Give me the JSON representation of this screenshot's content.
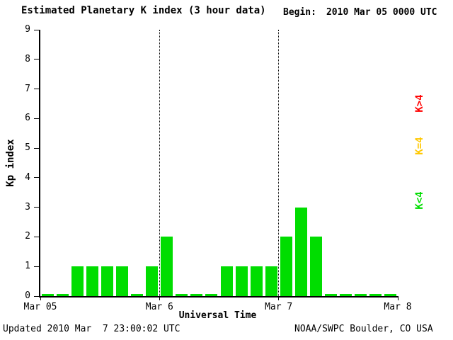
{
  "title": "Estimated Planetary K index (3 hour data)",
  "begin": {
    "label": "Begin:",
    "value": "2010 Mar 05 0000 UTC"
  },
  "y_axis": {
    "label": "Kp index"
  },
  "x_axis": {
    "label": "Universal Time"
  },
  "legend": [
    {
      "label": "K>4",
      "color": "#ff0000"
    },
    {
      "label": "K=4",
      "color": "#ffc800"
    },
    {
      "label": "K<4",
      "color": "#00dd00"
    }
  ],
  "footer": {
    "updated": "Updated 2010 Mar  7 23:00:02 UTC",
    "source": "NOAA/SWPC Boulder, CO USA"
  },
  "chart_data": {
    "type": "bar",
    "title": "Estimated Planetary K index (3 hour data)",
    "xlabel": "Universal Time",
    "ylabel": "Kp index",
    "ylim": [
      0,
      9
    ],
    "y_ticks": [
      0,
      1,
      2,
      3,
      4,
      5,
      6,
      7,
      8,
      9
    ],
    "x_tick_labels": [
      "Mar 05",
      "Mar 6",
      "Mar 7",
      "Mar 8"
    ],
    "interval_hours": 3,
    "begin_utc": "2010 Mar 05 0000 UTC",
    "values": [
      0,
      0,
      1,
      1,
      1,
      1,
      0,
      1,
      2,
      0,
      0,
      0,
      1,
      1,
      1,
      1,
      2,
      3,
      2,
      0,
      0,
      0,
      0,
      0
    ],
    "bar_colors_rule": {
      "k_lt_4": "#00dd00",
      "k_eq_4": "#ffc800",
      "k_gt_4": "#ff0000"
    },
    "grid": "dotted vertical lines at day boundaries",
    "legend_position": "right, rotated"
  }
}
